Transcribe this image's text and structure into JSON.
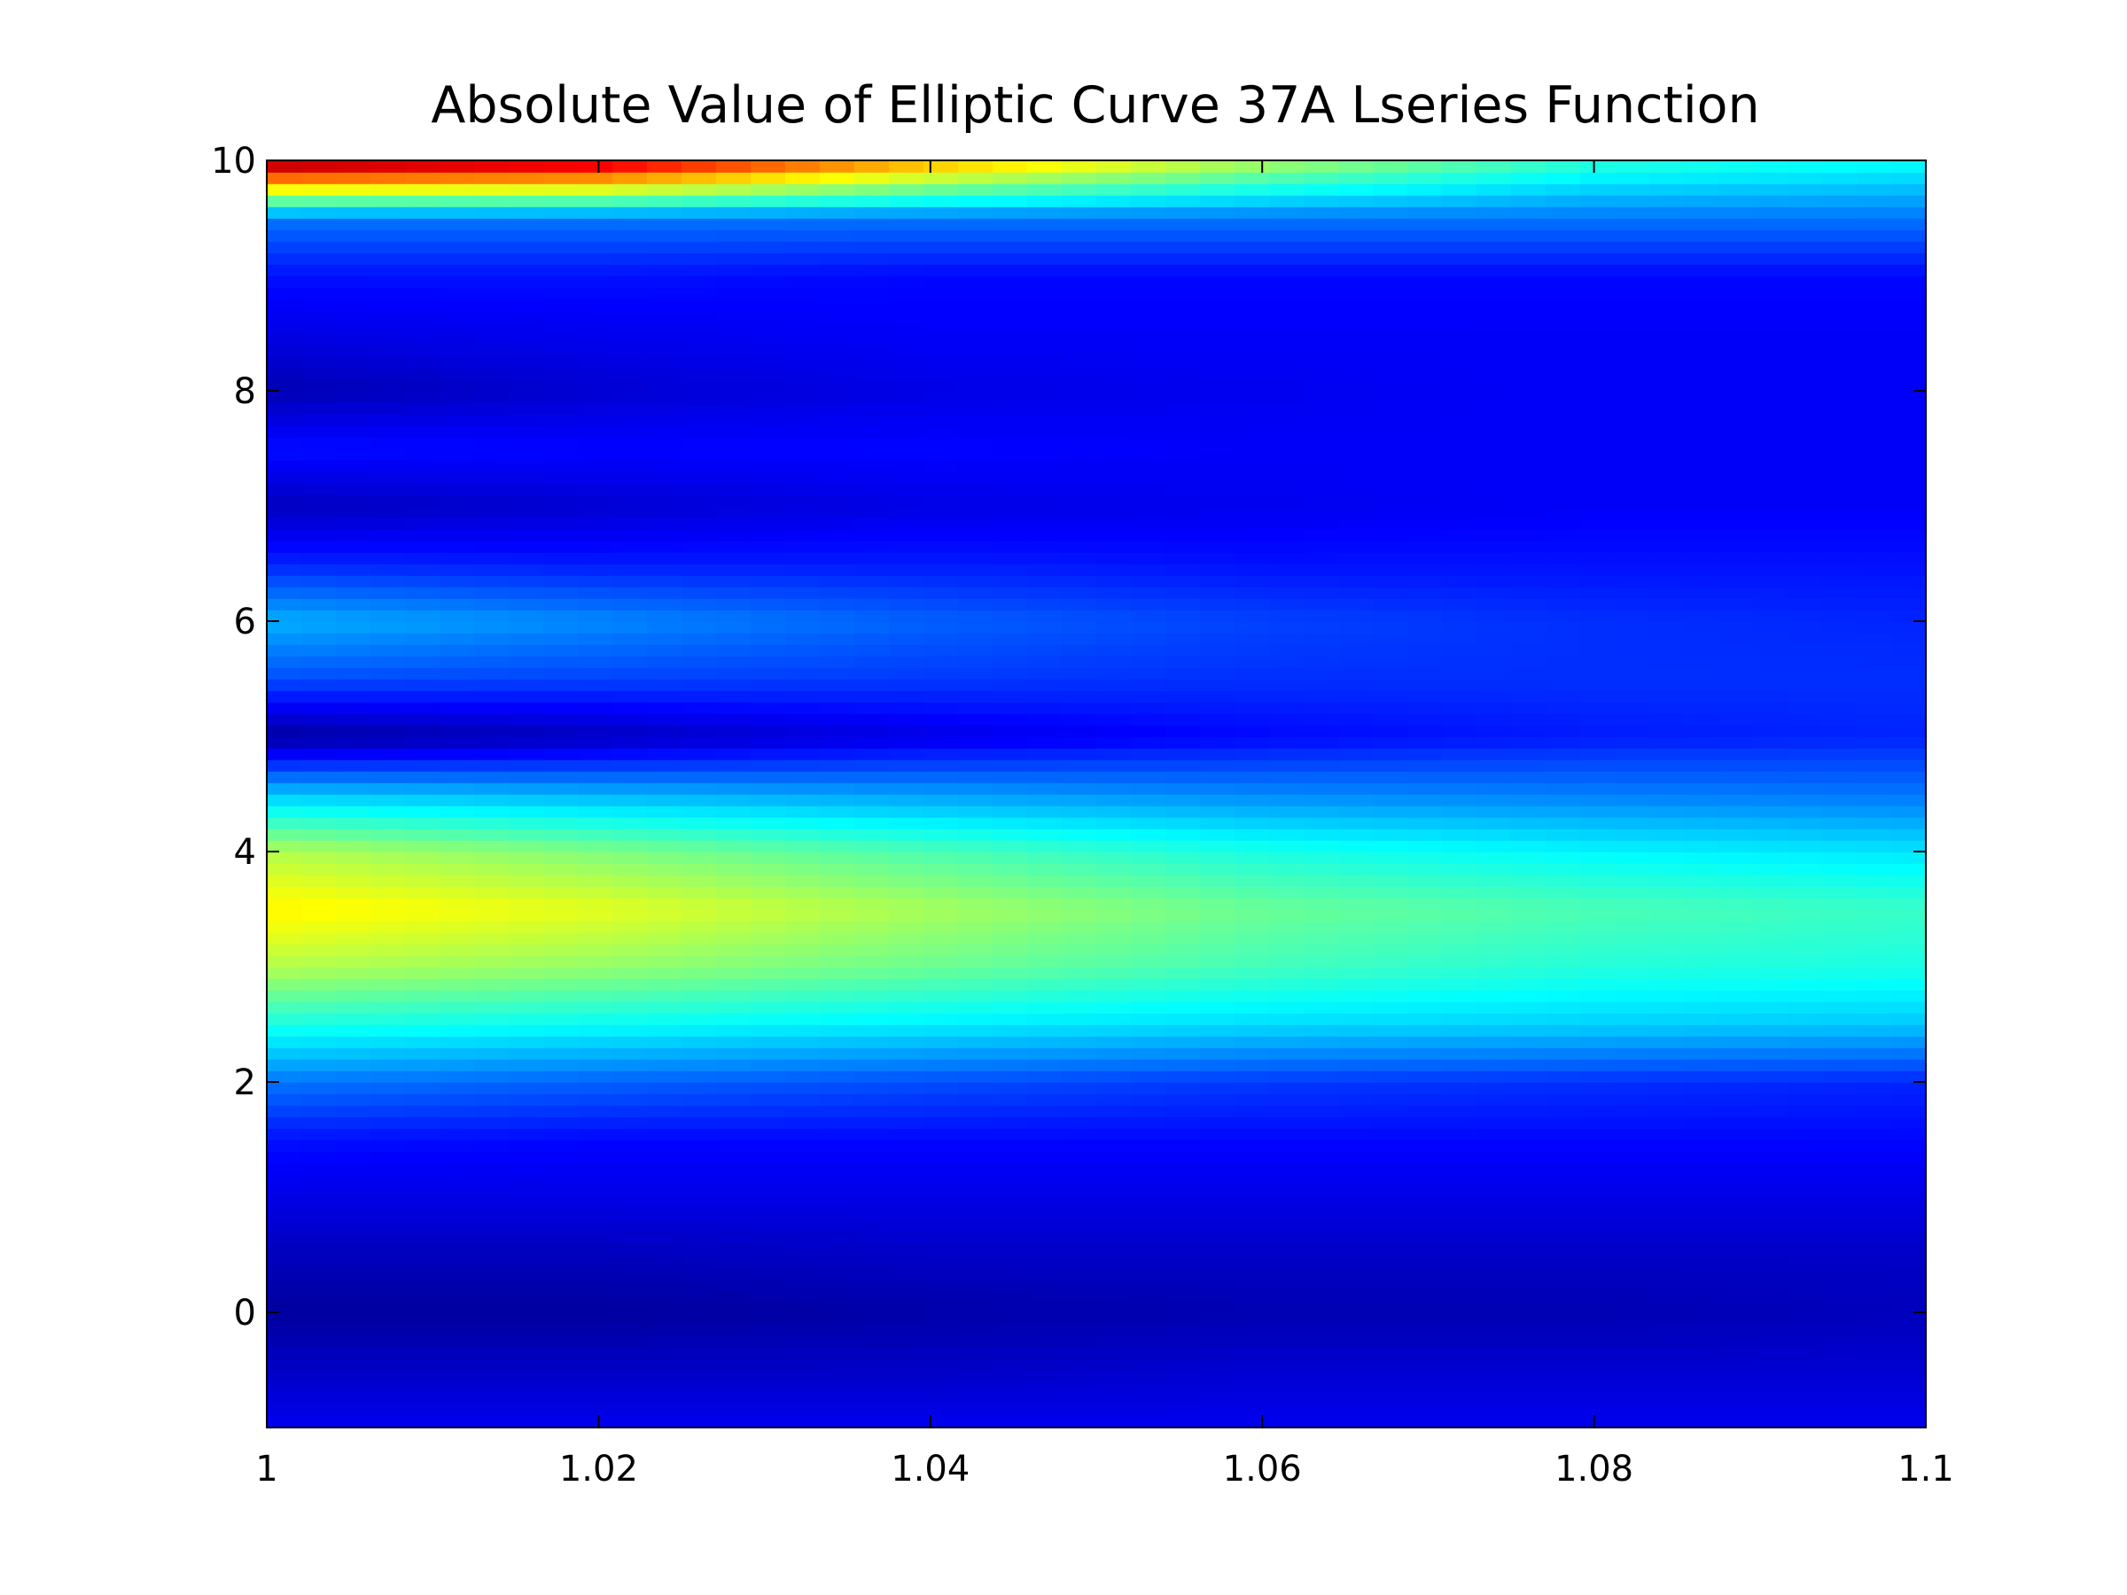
{
  "chart_data": {
    "type": "heatmap",
    "title": "Absolute Value of Elliptic Curve 37A Lseries Function",
    "xlabel": "",
    "ylabel": "",
    "xlim": [
      1.0,
      1.1
    ],
    "ylim": [
      -1,
      10
    ],
    "colormap": "jet",
    "grid": false,
    "x_ticks": [
      {
        "value": 1.0,
        "label": "1"
      },
      {
        "value": 1.02,
        "label": "1.02"
      },
      {
        "value": 1.04,
        "label": "1.04"
      },
      {
        "value": 1.06,
        "label": "1.06"
      },
      {
        "value": 1.08,
        "label": "1.08"
      },
      {
        "value": 1.1,
        "label": "1.1"
      }
    ],
    "y_ticks": [
      {
        "value": 0,
        "label": "0"
      },
      {
        "value": 2,
        "label": "2"
      },
      {
        "value": 4,
        "label": "4"
      },
      {
        "value": 6,
        "label": "6"
      },
      {
        "value": 8,
        "label": "8"
      },
      {
        "value": 10,
        "label": "10"
      }
    ],
    "x": [
      1.0,
      1.02,
      1.04,
      1.06,
      1.08,
      1.1
    ],
    "y": [
      -1,
      -0.5,
      0,
      0.5,
      1,
      1.5,
      2,
      2.5,
      3,
      3.5,
      4,
      4.5,
      5,
      5.5,
      6,
      6.5,
      7,
      7.5,
      8,
      8.5,
      9,
      9.5,
      10
    ],
    "z_normalized": [
      [
        0.11,
        0.11,
        0.11,
        0.11,
        0.11,
        0.11
      ],
      [
        0.07,
        0.07,
        0.07,
        0.08,
        0.08,
        0.08
      ],
      [
        0.03,
        0.03,
        0.04,
        0.05,
        0.05,
        0.06
      ],
      [
        0.06,
        0.06,
        0.07,
        0.07,
        0.07,
        0.07
      ],
      [
        0.1,
        0.1,
        0.1,
        0.1,
        0.1,
        0.1
      ],
      [
        0.14,
        0.13,
        0.13,
        0.13,
        0.13,
        0.13
      ],
      [
        0.24,
        0.22,
        0.2,
        0.18,
        0.17,
        0.16
      ],
      [
        0.4,
        0.38,
        0.36,
        0.34,
        0.33,
        0.32
      ],
      [
        0.55,
        0.52,
        0.48,
        0.44,
        0.41,
        0.4
      ],
      [
        0.64,
        0.6,
        0.54,
        0.48,
        0.45,
        0.43
      ],
      [
        0.55,
        0.5,
        0.45,
        0.4,
        0.37,
        0.35
      ],
      [
        0.32,
        0.3,
        0.28,
        0.26,
        0.25,
        0.24
      ],
      [
        0.03,
        0.06,
        0.1,
        0.13,
        0.15,
        0.16
      ],
      [
        0.2,
        0.19,
        0.18,
        0.17,
        0.17,
        0.17
      ],
      [
        0.3,
        0.26,
        0.22,
        0.19,
        0.17,
        0.16
      ],
      [
        0.16,
        0.15,
        0.15,
        0.14,
        0.14,
        0.14
      ],
      [
        0.06,
        0.08,
        0.1,
        0.11,
        0.12,
        0.12
      ],
      [
        0.14,
        0.13,
        0.13,
        0.12,
        0.12,
        0.12
      ],
      [
        0.05,
        0.08,
        0.1,
        0.11,
        0.12,
        0.12
      ],
      [
        0.1,
        0.11,
        0.12,
        0.12,
        0.12,
        0.12
      ],
      [
        0.14,
        0.14,
        0.13,
        0.13,
        0.13,
        0.13
      ],
      [
        0.24,
        0.24,
        0.24,
        0.24,
        0.24,
        0.24
      ],
      [
        1.0,
        0.95,
        0.72,
        0.55,
        0.42,
        0.38
      ]
    ]
  }
}
